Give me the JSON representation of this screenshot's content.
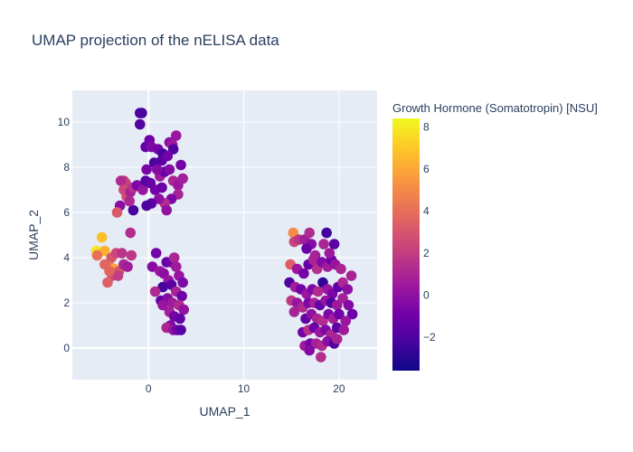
{
  "chart_data": {
    "type": "scatter",
    "title": "UMAP projection of the nELISA data",
    "xlabel": "UMAP_1",
    "ylabel": "UMAP_2",
    "xlim": [
      -8,
      24
    ],
    "ylim": [
      -1.4,
      11.4
    ],
    "xticks": [
      0,
      10,
      20
    ],
    "yticks": [
      0,
      2,
      4,
      6,
      8,
      10
    ],
    "colorbar": {
      "title": "Growth Hormone (Somatotropin) [NSU]",
      "range": [
        -3.6,
        8.4
      ],
      "ticks": [
        -2,
        0,
        2,
        4,
        6,
        8
      ],
      "colorscale": "plasma"
    },
    "background": "#e5ecf6",
    "grid": true,
    "points": [
      [
        -0.7,
        10.4,
        -2.2
      ],
      [
        -0.9,
        10.4,
        -2.1
      ],
      [
        -0.9,
        9.9,
        -1.8
      ],
      [
        -0.3,
        8.9,
        -1.4
      ],
      [
        0.1,
        9.2,
        -1.0
      ],
      [
        0.3,
        8.9,
        -0.5
      ],
      [
        1.0,
        8.8,
        -0.8
      ],
      [
        1.5,
        8.6,
        -2.4
      ],
      [
        2.2,
        9.1,
        -0.2
      ],
      [
        2.5,
        9.0,
        0.5
      ],
      [
        2.9,
        9.4,
        0.3
      ],
      [
        2.6,
        8.8,
        -1.9
      ],
      [
        1.4,
        8.3,
        -1.6
      ],
      [
        0.6,
        8.2,
        -2.0
      ],
      [
        -0.2,
        7.9,
        -0.7
      ],
      [
        -2.6,
        7.4,
        1.9
      ],
      [
        -2.4,
        7.3,
        2.2
      ],
      [
        -2.9,
        7.4,
        1.2
      ],
      [
        -2.6,
        7.0,
        2.4
      ],
      [
        -2.3,
        6.7,
        2.7
      ],
      [
        -1.9,
        6.9,
        0.8
      ],
      [
        -1.6,
        7.1,
        1.5
      ],
      [
        -1.2,
        7.2,
        -0.6
      ],
      [
        -0.6,
        7.0,
        0.2
      ],
      [
        -0.3,
        7.4,
        -1.7
      ],
      [
        0.2,
        7.3,
        -1.3
      ],
      [
        0.7,
        7.0,
        -0.9
      ],
      [
        1.2,
        7.6,
        0.6
      ],
      [
        1.7,
        7.8,
        -1.2
      ],
      [
        2.2,
        7.9,
        -0.4
      ],
      [
        2.6,
        7.4,
        1.0
      ],
      [
        3.1,
        7.2,
        0.4
      ],
      [
        3.4,
        8.1,
        -0.8
      ],
      [
        3.6,
        7.5,
        0.7
      ],
      [
        3.1,
        6.8,
        0.9
      ],
      [
        2.4,
        6.6,
        -0.6
      ],
      [
        1.7,
        6.4,
        1.3
      ],
      [
        1.1,
        6.6,
        0.0
      ],
      [
        0.3,
        6.4,
        -1.5
      ],
      [
        -0.2,
        6.3,
        -2.0
      ],
      [
        -1.6,
        6.1,
        -2.2
      ],
      [
        -3.0,
        6.3,
        -0.2
      ],
      [
        -3.3,
        6.0,
        3.2
      ],
      [
        -2.0,
        6.5,
        1.1
      ],
      [
        1.9,
        6.1,
        0.1
      ],
      [
        1.4,
        7.1,
        -1.1
      ],
      [
        0.9,
        7.9,
        -0.3
      ],
      [
        2.0,
        8.5,
        -0.9
      ],
      [
        -5.5,
        4.3,
        7.9
      ],
      [
        -5.2,
        4.2,
        7.5
      ],
      [
        -4.9,
        4.9,
        6.7
      ],
      [
        -4.6,
        4.3,
        6.2
      ],
      [
        -5.4,
        4.1,
        4.1
      ],
      [
        -3.9,
        4.0,
        3.0
      ],
      [
        -3.4,
        4.2,
        2.4
      ],
      [
        -2.8,
        4.2,
        1.6
      ],
      [
        -1.8,
        4.1,
        1.8
      ],
      [
        -4.1,
        3.6,
        4.2
      ],
      [
        -4.6,
        3.7,
        3.6
      ],
      [
        -3.6,
        3.5,
        5.8
      ],
      [
        -3.1,
        3.4,
        3.0
      ],
      [
        -3.8,
        3.2,
        2.4
      ],
      [
        -3.2,
        3.2,
        2.0
      ],
      [
        -4.3,
        2.9,
        3.4
      ],
      [
        -2.6,
        3.7,
        1.0
      ],
      [
        -2.2,
        3.6,
        0.6
      ],
      [
        -1.9,
        5.1,
        1.3
      ],
      [
        -4.1,
        3.4,
        3.6
      ],
      [
        0.8,
        4.2,
        -0.9
      ],
      [
        0.4,
        3.6,
        -0.3
      ],
      [
        1.2,
        3.4,
        0.4
      ],
      [
        1.9,
        3.8,
        -1.3
      ],
      [
        2.4,
        3.8,
        -0.9
      ],
      [
        2.7,
        4.0,
        1.0
      ],
      [
        2.9,
        3.6,
        0.6
      ],
      [
        1.6,
        3.3,
        -0.1
      ],
      [
        2.1,
        3.0,
        0.3
      ],
      [
        3.2,
        3.2,
        0.2
      ],
      [
        3.6,
        2.9,
        -0.6
      ],
      [
        1.5,
        2.7,
        -2.2
      ],
      [
        2.4,
        2.8,
        -1.6
      ],
      [
        2.9,
        2.5,
        0.9
      ],
      [
        3.5,
        2.3,
        -1.1
      ],
      [
        0.7,
        2.5,
        1.1
      ],
      [
        1.3,
        2.1,
        -1.4
      ],
      [
        2.0,
        2.2,
        -0.3
      ],
      [
        2.5,
        2.0,
        0.5
      ],
      [
        3.2,
        1.9,
        1.2
      ],
      [
        3.7,
        1.7,
        0.1
      ],
      [
        2.2,
        1.6,
        0.7
      ],
      [
        2.7,
        1.4,
        -0.8
      ],
      [
        3.3,
        1.3,
        -1.4
      ],
      [
        2.3,
        1.0,
        -0.5
      ],
      [
        1.9,
        0.9,
        1.0
      ],
      [
        2.6,
        0.8,
        0.2
      ],
      [
        3.0,
        0.8,
        -0.9
      ],
      [
        3.4,
        0.8,
        -1.7
      ],
      [
        1.5,
        1.9,
        0.3
      ],
      [
        15.2,
        5.1,
        5.1
      ],
      [
        15.3,
        4.7,
        2.3
      ],
      [
        15.8,
        4.8,
        1.6
      ],
      [
        16.4,
        4.8,
        0.6
      ],
      [
        16.9,
        5.1,
        1.2
      ],
      [
        17.1,
        4.6,
        -0.3
      ],
      [
        17.5,
        4.1,
        0.8
      ],
      [
        16.6,
        4.4,
        -1.2
      ],
      [
        18.4,
        4.6,
        1.0
      ],
      [
        18.7,
        5.1,
        -2.3
      ],
      [
        19.5,
        4.6,
        -1.6
      ],
      [
        14.9,
        3.7,
        3.3
      ],
      [
        15.6,
        3.5,
        0.4
      ],
      [
        16.3,
        3.3,
        -0.8
      ],
      [
        16.8,
        3.7,
        -1.3
      ],
      [
        17.3,
        3.9,
        0.9
      ],
      [
        17.7,
        3.5,
        1.4
      ],
      [
        18.2,
        3.8,
        -0.4
      ],
      [
        18.8,
        3.6,
        0.6
      ],
      [
        19.2,
        3.9,
        -1.1
      ],
      [
        19.6,
        3.7,
        0.2
      ],
      [
        20.2,
        3.5,
        1.0
      ],
      [
        19.0,
        4.2,
        0.5
      ],
      [
        14.8,
        2.9,
        -2.1
      ],
      [
        15.4,
        2.7,
        0.7
      ],
      [
        16.0,
        2.6,
        -0.9
      ],
      [
        16.6,
        2.4,
        0.3
      ],
      [
        17.2,
        2.6,
        -0.5
      ],
      [
        17.8,
        2.5,
        1.2
      ],
      [
        18.3,
        2.9,
        -2.7
      ],
      [
        18.8,
        2.6,
        0.4
      ],
      [
        19.3,
        2.4,
        -0.7
      ],
      [
        19.9,
        2.7,
        -1.5
      ],
      [
        20.4,
        2.9,
        1.1
      ],
      [
        20.9,
        2.6,
        -0.1
      ],
      [
        21.3,
        3.2,
        0.9
      ],
      [
        15.0,
        2.1,
        1.8
      ],
      [
        15.6,
        2.0,
        0.3
      ],
      [
        16.2,
        1.8,
        1.2
      ],
      [
        16.8,
        2.0,
        -0.6
      ],
      [
        17.4,
        2.0,
        0.8
      ],
      [
        18.0,
        1.9,
        -1.3
      ],
      [
        18.6,
        2.1,
        0.2
      ],
      [
        19.2,
        2.0,
        -1.9
      ],
      [
        19.8,
        1.9,
        0.5
      ],
      [
        20.4,
        2.2,
        0.8
      ],
      [
        21.0,
        1.9,
        -0.4
      ],
      [
        21.4,
        1.5,
        -1.1
      ],
      [
        15.3,
        1.6,
        0.9
      ],
      [
        16.5,
        1.3,
        -1.4
      ],
      [
        17.1,
        1.5,
        0.0
      ],
      [
        17.7,
        1.3,
        1.0
      ],
      [
        18.3,
        1.2,
        1.3
      ],
      [
        18.9,
        1.5,
        -0.6
      ],
      [
        19.4,
        1.3,
        0.6
      ],
      [
        20.0,
        1.5,
        -1.0
      ],
      [
        20.7,
        1.2,
        0.3
      ],
      [
        16.2,
        0.7,
        -0.8
      ],
      [
        16.8,
        0.8,
        1.5
      ],
      [
        17.4,
        0.9,
        -1.2
      ],
      [
        18.0,
        0.7,
        0.4
      ],
      [
        18.6,
        0.8,
        -0.5
      ],
      [
        19.2,
        0.6,
        1.1
      ],
      [
        19.8,
        0.9,
        -1.6
      ],
      [
        20.5,
        0.8,
        0.5
      ],
      [
        16.4,
        0.1,
        0.6
      ],
      [
        17.0,
        0.2,
        -0.9
      ],
      [
        17.6,
        0.2,
        0.8
      ],
      [
        18.2,
        0.1,
        1.2
      ],
      [
        18.8,
        0.3,
        -0.2
      ],
      [
        19.5,
        0.2,
        -1.8
      ],
      [
        18.1,
        -0.4,
        1.3
      ],
      [
        16.9,
        -0.1,
        -0.4
      ],
      [
        19.8,
        0.4,
        0.9
      ]
    ]
  }
}
